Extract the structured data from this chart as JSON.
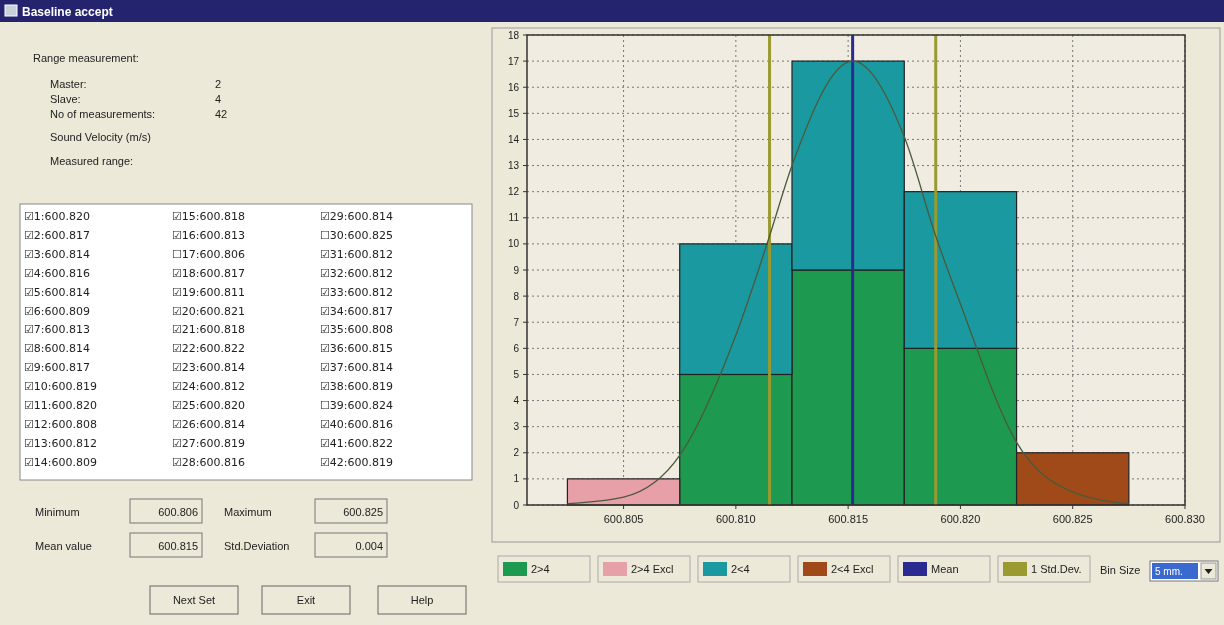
{
  "chart_data": [
    {
      "type": "other",
      "title": "Baseline accept",
      "annotations": [
        "Range measurement:",
        "Master:",
        "2",
        "Slave:",
        "4",
        "No of measurements:",
        "42",
        "Sound Velocity (m/s)",
        "Measured range:",
        "☑1:600.820",
        "☑2:600.817",
        "☑3:600.814",
        "☑4:600.816",
        "☑5:600.814",
        "☑6:600.809",
        "☑7:600.813",
        "☑8:600.814",
        "☑9:600.817",
        "☑10:600.819",
        "☑11:600.820",
        "☑12:600.808",
        "☑13:600.812",
        "☑14:600.809",
        "☑15:600.818",
        "☑16:600.813",
        "☐17:600.806",
        "☑18:600.817",
        "☑19:600.811",
        "☑20:600.821",
        "☑21:600.818",
        "☑22:600.822",
        "☑23:600.814",
        "☑24:600.812",
        "☑25:600.820",
        "☑26:600.814",
        "☑27:600.819",
        "☑28:600.816",
        "☑29:600.814",
        "☐30:600.825",
        "☑31:600.812",
        "☑32:600.812",
        "☑33:600.812",
        "☑34:600.817",
        "☑35:600.808",
        "☑36:600.815",
        "☑37:600.814",
        "☑38:600.819",
        "☐39:600.824",
        "☑40:600.816",
        "☑41:600.822",
        "☑42:600.819",
        "Minimum",
        "600.806",
        "Maximum",
        "600.825",
        "Mean value",
        "600.815",
        "Std.Deviation",
        "0.004",
        "Next Set",
        "Exit",
        "Help"
      ]
    },
    {
      "type": "bar",
      "stacked": true,
      "x": [
        600.805,
        600.81,
        600.815,
        600.82,
        600.825
      ],
      "series": [
        {
          "name": "2>4",
          "color": "#1e9a50",
          "values": [
            0,
            5,
            9,
            6,
            0
          ]
        },
        {
          "name": "2>4 Excl",
          "color": "#e8a0a8",
          "values": [
            1,
            0,
            0,
            0,
            0
          ]
        },
        {
          "name": "2<4",
          "color": "#1a9aa0",
          "values": [
            0,
            5,
            8,
            6,
            0
          ]
        },
        {
          "name": "2<4 Excl",
          "color": "#a04a1a",
          "values": [
            0,
            0,
            0,
            0,
            2
          ]
        },
        {
          "type": "line",
          "color": "#4a5a3a",
          "x": [
            600.8025,
            600.805,
            600.8075,
            600.81,
            600.8115,
            600.8125,
            600.8152,
            600.8175,
            600.8189,
            600.82,
            600.8225,
            600.825,
            600.8275
          ],
          "values": [
            0.05,
            0.3,
            1.9,
            6.5,
            10.3,
            13,
            17,
            14.1,
            10.3,
            7.7,
            2.4,
            0.5,
            0.05
          ]
        }
      ],
      "xlim": [
        600.8007,
        600.83
      ],
      "xticks": [
        {
          "value": 600.805,
          "label": "600.805"
        },
        {
          "value": 600.81,
          "label": "600.810"
        },
        {
          "value": 600.815,
          "label": "600.815"
        },
        {
          "value": 600.82,
          "label": "600.820"
        },
        {
          "value": 600.825,
          "label": "600.825"
        },
        {
          "value": 600.83,
          "label": "600.830"
        }
      ],
      "ylim": [
        0,
        18
      ],
      "yticks": [
        0,
        1,
        2,
        3,
        4,
        5,
        6,
        7,
        8,
        9,
        10,
        11,
        12,
        13,
        14,
        15,
        16,
        17,
        18
      ],
      "grid": true,
      "legend": "bottom",
      "ref_lines": [
        {
          "axis": "x",
          "value": 600.8152,
          "label": "Mean",
          "color": "#2a2a90"
        },
        {
          "axis": "x",
          "value": 600.8115,
          "label": "1 Std.Dev.",
          "color": "#9a9a30"
        },
        {
          "axis": "x",
          "value": 600.8189,
          "color": "#9a9a30"
        }
      ],
      "annotations": [
        "Bin Size",
        "5 mm."
      ]
    }
  ]
}
